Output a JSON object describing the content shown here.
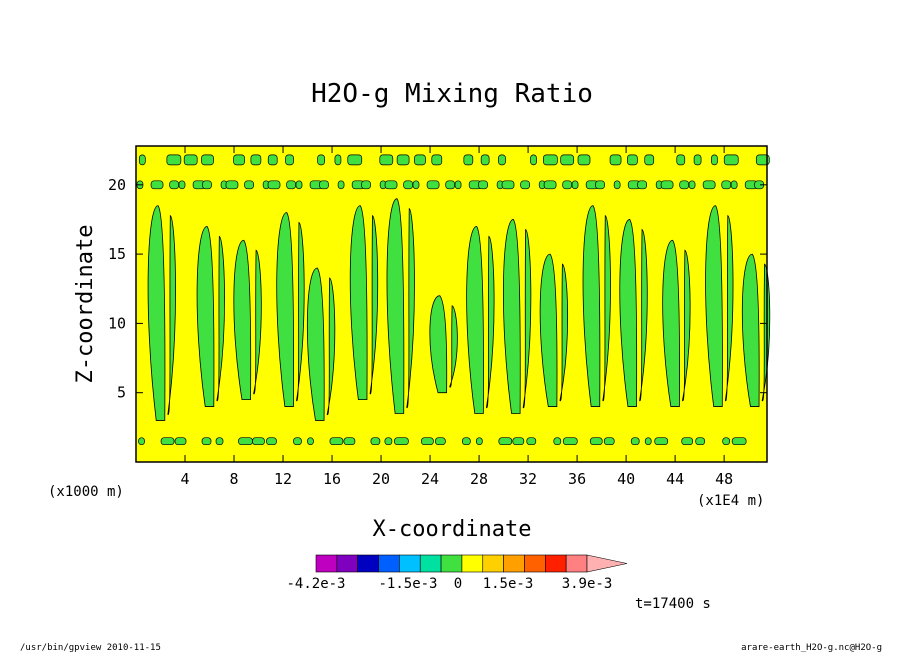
{
  "chart_data": {
    "type": "heatmap",
    "title": "H2O-g Mixing Ratio",
    "xlabel": "X-coordinate",
    "ylabel": "Z-coordinate",
    "x_unit_label": "(x1E4 m)",
    "y_unit_label": "(x1000 m)",
    "xlim": [
      0,
      51.5
    ],
    "ylim": [
      0,
      22.8
    ],
    "x_ticks": [
      4,
      8,
      12,
      16,
      20,
      24,
      28,
      32,
      36,
      40,
      44,
      48
    ],
    "y_ticks": [
      5,
      10,
      15,
      20
    ],
    "time_label": "t=17400 s",
    "colorbar": {
      "labels": [
        "-4.2e-3",
        "-1.5e-3",
        "0",
        "1.5e-3",
        "3.9e-3"
      ],
      "colors": [
        "#c000c0",
        "#8000c0",
        "#0000c0",
        "#0060ff",
        "#00c0ff",
        "#00e0a0",
        "#40e040",
        "#ffff00",
        "#ffd000",
        "#ffa000",
        "#ff6000",
        "#ff2000",
        "#ff8080",
        "#ffb0b0"
      ]
    },
    "dominant_fill": "#ffff00",
    "secondary_fill": "#40e040",
    "plumes": [
      {
        "x": 2.0,
        "z_low": 3.0,
        "z_high": 18.5
      },
      {
        "x": 6.0,
        "z_low": 4.0,
        "z_high": 17.0
      },
      {
        "x": 9.0,
        "z_low": 4.5,
        "z_high": 16.0
      },
      {
        "x": 12.5,
        "z_low": 4.0,
        "z_high": 18.0
      },
      {
        "x": 15.0,
        "z_low": 3.0,
        "z_high": 14.0
      },
      {
        "x": 18.5,
        "z_low": 4.5,
        "z_high": 18.5
      },
      {
        "x": 21.5,
        "z_low": 3.5,
        "z_high": 19.0
      },
      {
        "x": 25.0,
        "z_low": 5.0,
        "z_high": 12.0
      },
      {
        "x": 28.0,
        "z_low": 3.5,
        "z_high": 17.0
      },
      {
        "x": 31.0,
        "z_low": 3.5,
        "z_high": 17.5
      },
      {
        "x": 34.0,
        "z_low": 4.0,
        "z_high": 15.0
      },
      {
        "x": 37.5,
        "z_low": 4.0,
        "z_high": 18.5
      },
      {
        "x": 40.5,
        "z_low": 4.0,
        "z_high": 17.5
      },
      {
        "x": 44.0,
        "z_low": 4.0,
        "z_high": 16.0
      },
      {
        "x": 47.5,
        "z_low": 4.0,
        "z_high": 18.5
      },
      {
        "x": 50.5,
        "z_low": 4.0,
        "z_high": 15.0
      }
    ]
  },
  "footer_left": "/usr/bin/gpview  2010-11-15",
  "footer_right": "arare-earth_H2O-g.nc@H2O-g"
}
